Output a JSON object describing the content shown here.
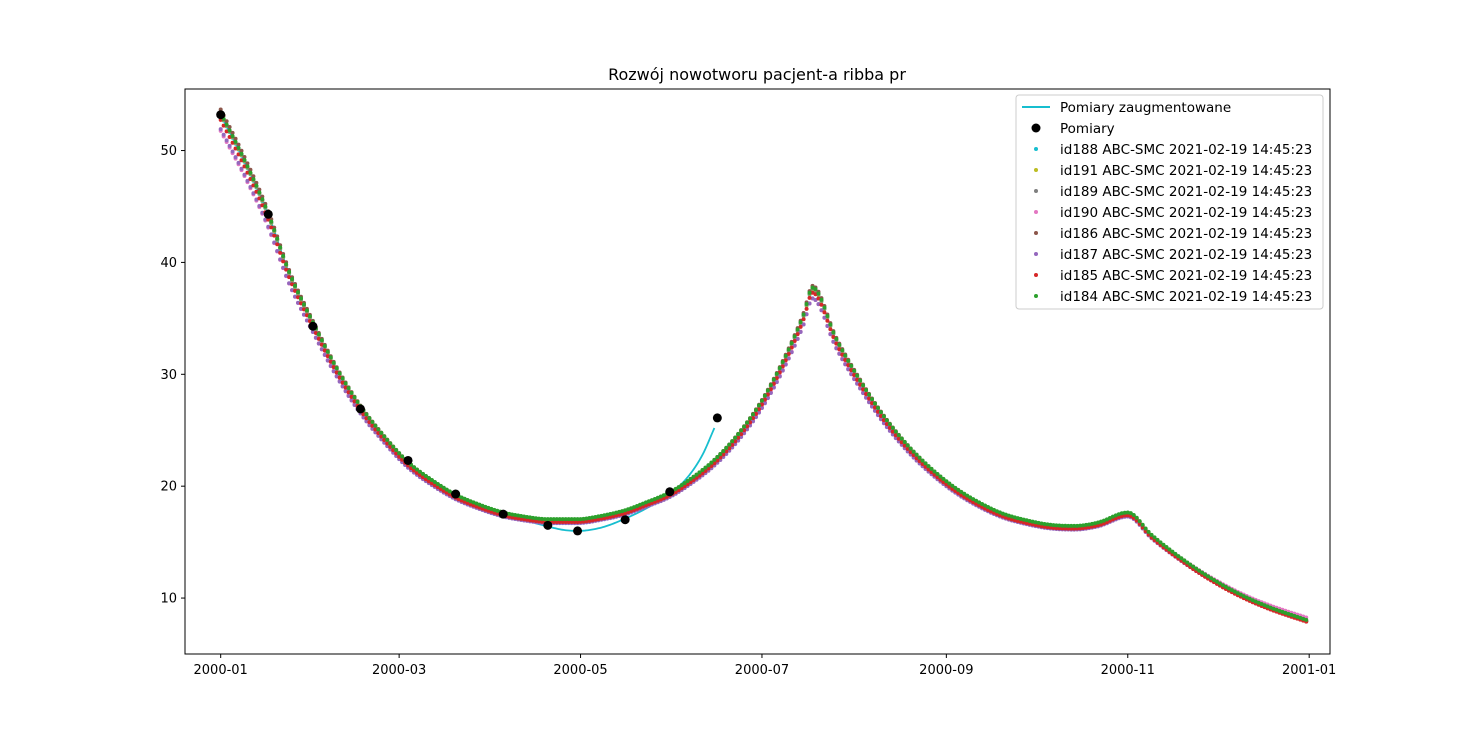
{
  "chart_data": {
    "type": "scatter",
    "title": "Rozwój nowotworu pacjent-a ribba pr",
    "xlabel": "",
    "ylabel": "",
    "x_axis": "date",
    "xlim": [
      "1999-12-20",
      "2001-01-08"
    ],
    "ylim": [
      5,
      55.5
    ],
    "x_ticks": [
      "2000-01",
      "2000-03",
      "2000-05",
      "2000-07",
      "2000-09",
      "2000-11",
      "2001-01"
    ],
    "y_ticks": [
      10,
      20,
      30,
      40,
      50
    ],
    "grid": false,
    "legend_position": "top-right",
    "measured": {
      "name": "Pomiary",
      "color": "#000000",
      "points": [
        {
          "x": "2000-01-01",
          "y": 53.2
        },
        {
          "x": "2000-01-17",
          "y": 44.3
        },
        {
          "x": "2000-02-01",
          "y": 34.3
        },
        {
          "x": "2000-02-17",
          "y": 26.9
        },
        {
          "x": "2000-03-04",
          "y": 22.3
        },
        {
          "x": "2000-03-20",
          "y": 19.3
        },
        {
          "x": "2000-04-05",
          "y": 17.5
        },
        {
          "x": "2000-04-20",
          "y": 16.5
        },
        {
          "x": "2000-04-30",
          "y": 16.0
        },
        {
          "x": "2000-05-16",
          "y": 17.0
        },
        {
          "x": "2000-05-31",
          "y": 19.5
        },
        {
          "x": "2000-06-16",
          "y": 26.1
        }
      ]
    },
    "augmented": {
      "name": "Pomiary zaugmentowane",
      "color": "#17becf",
      "points": [
        {
          "x": "2000-01-01",
          "y": 53.2
        },
        {
          "x": "2000-01-09",
          "y": 49.0
        },
        {
          "x": "2000-01-17",
          "y": 44.3
        },
        {
          "x": "2000-01-24",
          "y": 39.0
        },
        {
          "x": "2000-02-01",
          "y": 34.3
        },
        {
          "x": "2000-02-09",
          "y": 30.2
        },
        {
          "x": "2000-02-17",
          "y": 26.9
        },
        {
          "x": "2000-02-25",
          "y": 24.3
        },
        {
          "x": "2000-03-04",
          "y": 22.1
        },
        {
          "x": "2000-03-12",
          "y": 20.5
        },
        {
          "x": "2000-03-20",
          "y": 19.3
        },
        {
          "x": "2000-03-28",
          "y": 18.3
        },
        {
          "x": "2000-04-05",
          "y": 17.5
        },
        {
          "x": "2000-04-13",
          "y": 16.9
        },
        {
          "x": "2000-04-20",
          "y": 16.4
        },
        {
          "x": "2000-04-25",
          "y": 16.1
        },
        {
          "x": "2000-04-30",
          "y": 16.0
        },
        {
          "x": "2000-05-08",
          "y": 16.3
        },
        {
          "x": "2000-05-16",
          "y": 17.1
        },
        {
          "x": "2000-05-23",
          "y": 18.0
        },
        {
          "x": "2000-05-31",
          "y": 19.3
        },
        {
          "x": "2000-06-06",
          "y": 20.8
        },
        {
          "x": "2000-06-11",
          "y": 22.8
        },
        {
          "x": "2000-06-15",
          "y": 25.2
        }
      ]
    },
    "series": [
      {
        "name": "id188 ABC-SMC 2021-02-19 14:45:23",
        "color": "#17becf",
        "offset": 0.0,
        "scale": 1.0
      },
      {
        "name": "id191 ABC-SMC 2021-02-19 14:45:23",
        "color": "#bcbd22",
        "offset": 0.05,
        "scale": 1.0
      },
      {
        "name": "id189 ABC-SMC 2021-02-19 14:45:23",
        "color": "#7f7f7f",
        "offset": 0.1,
        "scale": 1.0
      },
      {
        "name": "id190 ABC-SMC 2021-02-19 14:45:23",
        "color": "#e377c2",
        "offset": 0.0,
        "scale": 0.96
      },
      {
        "name": "id186 ABC-SMC 2021-02-19 14:45:23",
        "color": "#8c564b",
        "offset": 0.1,
        "scale": 1.01
      },
      {
        "name": "id187 ABC-SMC 2021-02-19 14:45:23",
        "color": "#9467bd",
        "offset": -0.2,
        "scale": 0.97
      },
      {
        "name": "id185 ABC-SMC 2021-02-19 14:45:23",
        "color": "#d62728",
        "offset": -0.1,
        "scale": 0.99
      },
      {
        "name": "id184 ABC-SMC 2021-02-19 14:45:23",
        "color": "#2ca02c",
        "offset": 0.15,
        "scale": 1.0
      }
    ],
    "simulation_knots": [
      {
        "x": "2000-01-01",
        "y": 53.2
      },
      {
        "x": "2000-01-09",
        "y": 49.0
      },
      {
        "x": "2000-01-17",
        "y": 44.2
      },
      {
        "x": "2000-01-24",
        "y": 39.0
      },
      {
        "x": "2000-02-01",
        "y": 34.5
      },
      {
        "x": "2000-02-09",
        "y": 30.4
      },
      {
        "x": "2000-02-17",
        "y": 27.0
      },
      {
        "x": "2000-02-25",
        "y": 24.3
      },
      {
        "x": "2000-03-04",
        "y": 22.0
      },
      {
        "x": "2000-03-12",
        "y": 20.4
      },
      {
        "x": "2000-03-20",
        "y": 19.1
      },
      {
        "x": "2000-03-28",
        "y": 18.2
      },
      {
        "x": "2000-04-05",
        "y": 17.5
      },
      {
        "x": "2000-04-13",
        "y": 17.1
      },
      {
        "x": "2000-04-20",
        "y": 16.9
      },
      {
        "x": "2000-04-30",
        "y": 16.9
      },
      {
        "x": "2000-05-08",
        "y": 17.2
      },
      {
        "x": "2000-05-16",
        "y": 17.7
      },
      {
        "x": "2000-05-23",
        "y": 18.4
      },
      {
        "x": "2000-05-31",
        "y": 19.3
      },
      {
        "x": "2000-06-07",
        "y": 20.5
      },
      {
        "x": "2000-06-15",
        "y": 22.2
      },
      {
        "x": "2000-06-23",
        "y": 24.5
      },
      {
        "x": "2000-07-01",
        "y": 27.5
      },
      {
        "x": "2000-07-09",
        "y": 31.5
      },
      {
        "x": "2000-07-15",
        "y": 35.2
      },
      {
        "x": "2000-07-18",
        "y": 37.6
      },
      {
        "x": "2000-07-26",
        "y": 33.0
      },
      {
        "x": "2000-08-03",
        "y": 29.3
      },
      {
        "x": "2000-08-11",
        "y": 26.1
      },
      {
        "x": "2000-08-19",
        "y": 23.5
      },
      {
        "x": "2000-08-27",
        "y": 21.4
      },
      {
        "x": "2000-09-04",
        "y": 19.7
      },
      {
        "x": "2000-09-12",
        "y": 18.4
      },
      {
        "x": "2000-09-20",
        "y": 17.4
      },
      {
        "x": "2000-09-28",
        "y": 16.8
      },
      {
        "x": "2000-10-06",
        "y": 16.4
      },
      {
        "x": "2000-10-14",
        "y": 16.3
      },
      {
        "x": "2000-10-22",
        "y": 16.6
      },
      {
        "x": "2000-11-01",
        "y": 17.5
      },
      {
        "x": "2000-11-09",
        "y": 15.5
      },
      {
        "x": "2000-11-17",
        "y": 13.8
      },
      {
        "x": "2000-11-25",
        "y": 12.3
      },
      {
        "x": "2000-12-03",
        "y": 11.0
      },
      {
        "x": "2000-12-11",
        "y": 9.9
      },
      {
        "x": "2000-12-19",
        "y": 9.0
      },
      {
        "x": "2000-12-31",
        "y": 7.9
      }
    ]
  }
}
